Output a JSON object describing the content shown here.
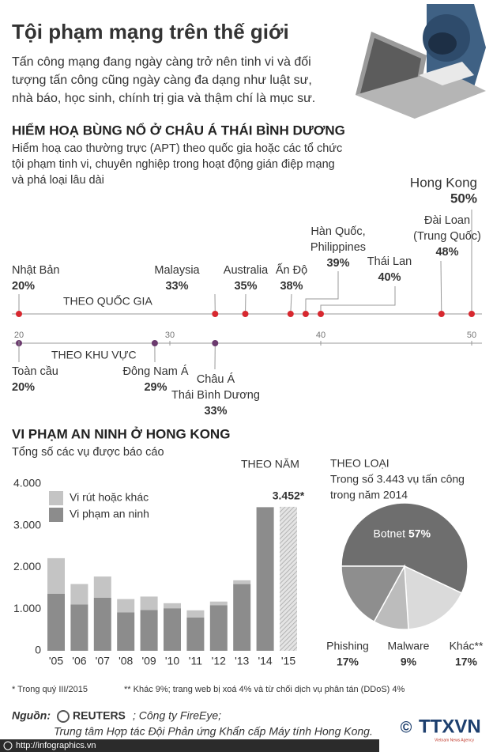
{
  "header": {
    "title": "Tội phạm mạng trên thế giới",
    "intro": [
      "Tấn công mạng đang ngày càng trở nên tinh vi và đối",
      "tượng tấn công cũng ngày càng đa dạng như luật sư,",
      "nhà báo, học sinh, chính trị gia và thậm chí là mục sư."
    ]
  },
  "chart_data": [
    {
      "type": "dot",
      "title": "HIỂM HOẠ BÙNG NỔ Ở CHÂU Á THÁI BÌNH DƯƠNG",
      "subtitle": [
        "Hiểm hoạ cao thường trực (APT) theo quốc gia hoặc các tổ chức",
        "tội phạm tinh vi, chuyên nghiệp trong hoạt động gián điệp mạng",
        "và phá loại lâu dài"
      ],
      "xlim": [
        20,
        50
      ],
      "xticks": [
        20,
        30,
        40,
        50
      ],
      "series": [
        {
          "name": "THEO QUỐC GIA",
          "color": "#d7282f",
          "categories": [
            [
              "Nhật Bản"
            ],
            [
              "Malaysia"
            ],
            [
              "Australia"
            ],
            [
              "Ấn Độ"
            ],
            [
              "Hàn Quốc,",
              "Philippines"
            ],
            [
              "Thái Lan"
            ],
            [
              "Đài Loan",
              "(Trung Quốc)"
            ],
            [
              "Hong Kong"
            ]
          ],
          "values": [
            20,
            33,
            35,
            38,
            39,
            40,
            48,
            50
          ],
          "value_labels": [
            "20%",
            "33%",
            "35%",
            "38%",
            "39%",
            "40%",
            "48%",
            "50%"
          ]
        },
        {
          "name": "THEO KHU VỰC",
          "color": "#6b3a6e",
          "categories": [
            [
              "Toàn cầu"
            ],
            [
              "Đông Nam Á"
            ],
            [
              "Châu Á",
              "Thái Bình Dương"
            ]
          ],
          "values": [
            20,
            29,
            33
          ],
          "value_labels": [
            "20%",
            "29%",
            "33%"
          ]
        }
      ]
    },
    {
      "type": "bar",
      "stacked": true,
      "title": "VI PHẠM AN NINH Ở HONG KONG",
      "subtitle": "Tổng số các vụ được báo cáo",
      "annotation": "THEO NĂM",
      "categories": [
        "'05",
        "'06",
        "'07",
        "'08",
        "'09",
        "'10",
        "'11",
        "'12",
        "'13",
        "'14",
        "'15"
      ],
      "ylim": [
        0,
        4000
      ],
      "yticks": [
        0,
        {
          "value": 1000,
          "label": "1.000"
        },
        {
          "value": 2000,
          "label": "2.000"
        },
        {
          "value": 3000,
          "label": "3.000"
        },
        {
          "value": 4000,
          "label": "4.000"
        }
      ],
      "grid": false,
      "series": [
        {
          "name": "Vi phạm an ninh",
          "color": "#8c8c8c",
          "values": [
            1370,
            1110,
            1270,
            920,
            980,
            1020,
            800,
            1090,
            1600,
            3443,
            null
          ]
        },
        {
          "name": "Vi rút hoặc khác",
          "color": "#c4c4c4",
          "values": [
            850,
            490,
            510,
            320,
            320,
            120,
            170,
            90,
            90,
            0,
            null
          ]
        },
        {
          "color": "#cfcfcf",
          "pattern": "hatch",
          "values": [
            null,
            null,
            null,
            null,
            null,
            null,
            null,
            null,
            null,
            null,
            3452
          ],
          "value_labels": [
            null,
            null,
            null,
            null,
            null,
            null,
            null,
            null,
            null,
            null,
            "3.452*"
          ]
        }
      ]
    },
    {
      "type": "pie",
      "title": "THEO LOẠI",
      "subtitle": [
        "Trong số 3.443 vụ tấn công",
        "trong năm 2014"
      ],
      "categories": [
        "Botnet",
        "Khác**",
        "Malware",
        "Phishing"
      ],
      "values": [
        57,
        17,
        9,
        17
      ],
      "value_labels": [
        "57%",
        "17%",
        "9%",
        "17%"
      ],
      "colors": [
        "#6e6e6e",
        "#dadada",
        "#bcbcbc",
        "#8e8e8e"
      ]
    }
  ],
  "footnotes": [
    "* Trong quý III/2015",
    "** Khác 9%; trang web bị xoá 4% và từ chối dịch vụ phân tán (DDoS) 4%"
  ],
  "source": {
    "label": "Nguồn:",
    "reuters": "REUTERS",
    "line1": "; Công ty FireEye;",
    "line2": "Trung tâm Hợp tác Đội Phản ứng Khẩn cấp Máy tính Hong Kong."
  },
  "footer": {
    "url": "http://infographics.vn",
    "logo_symbol": "©",
    "logo_name": "TTXVN",
    "logo_tagline": "Vietnam News Agency"
  }
}
